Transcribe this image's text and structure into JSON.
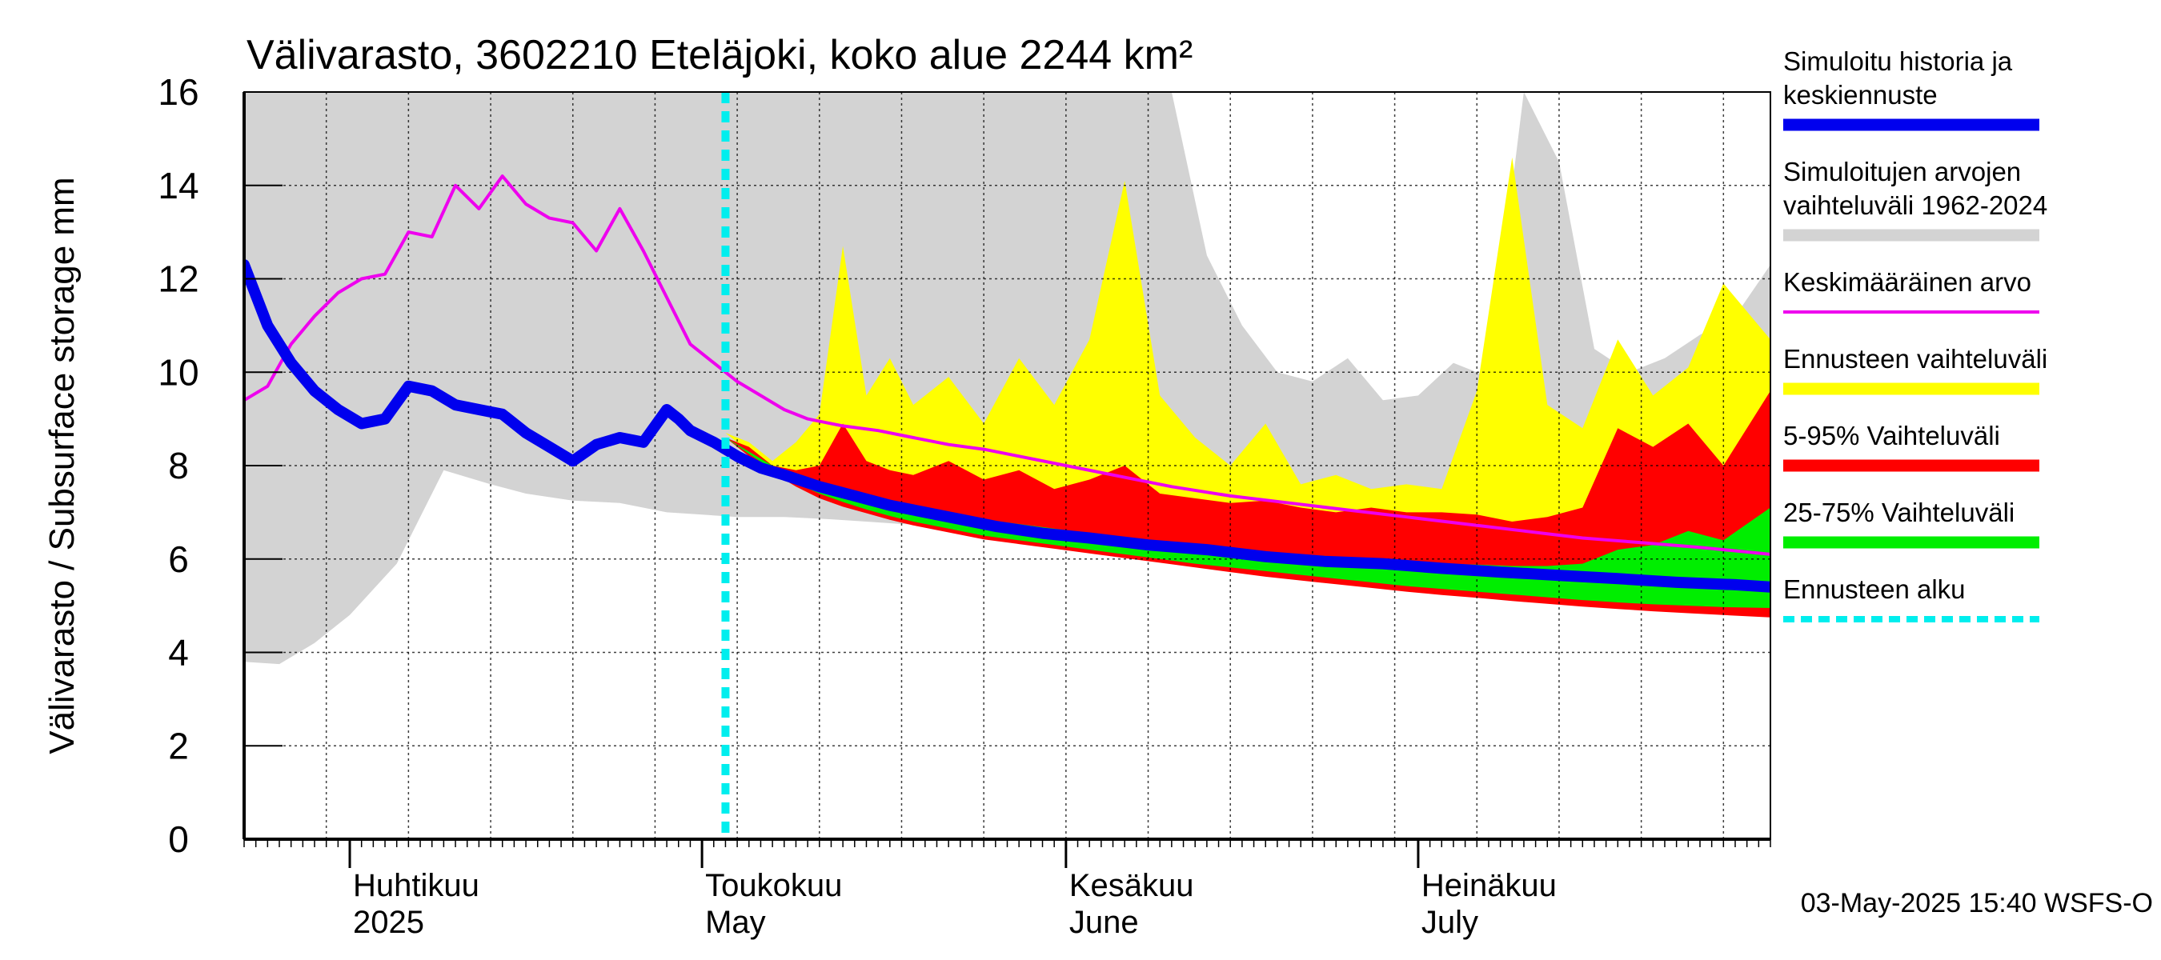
{
  "chart_data": {
    "type": "area",
    "title": "Välivarasto, 3602210 Eteläjoki, koko alue 2244 km²",
    "ylabel": "Välivarasto / Subsurface storage  mm",
    "ylim": [
      0,
      16
    ],
    "yticks": [
      0,
      2,
      4,
      6,
      8,
      10,
      12,
      14,
      16
    ],
    "xlim": [
      "2025-03-23",
      "2025-07-31"
    ],
    "forecast_start": "2025-05-03",
    "month_labels": [
      {
        "date": "2025-04-01",
        "fi": "Huhtikuu",
        "en": "2025"
      },
      {
        "date": "2025-05-01",
        "fi": "Toukokuu",
        "en": "May"
      },
      {
        "date": "2025-06-01",
        "fi": "Kesäkuu",
        "en": "June"
      },
      {
        "date": "2025-07-01",
        "fi": "Heinäkuu",
        "en": "July"
      }
    ],
    "grid": true,
    "legend_position": "right",
    "footer": "03-May-2025 15:40 WSFS-O",
    "colors": {
      "historical_range": "#d3d3d3",
      "forecast_range": "#ffff00",
      "range_5_95": "#ff0000",
      "range_25_75": "#00ee00",
      "simulated": "#0000ee",
      "mean": "#ee00ee",
      "forecast_start": "#00eeee"
    },
    "legend": [
      {
        "key": "simulated",
        "lines": [
          "Simuloitu historia ja",
          "keskiennuste"
        ],
        "color": "#0000ee",
        "style": "thick"
      },
      {
        "key": "historical_range",
        "lines": [
          "Simuloitujen arvojen",
          "vaihteluväli 1962-2024"
        ],
        "color": "#d3d3d3",
        "style": "thick"
      },
      {
        "key": "mean",
        "lines": [
          "Keskimääräinen arvo"
        ],
        "color": "#ee00ee",
        "style": "thin"
      },
      {
        "key": "forecast_range",
        "lines": [
          "Ennusteen vaihteluväli"
        ],
        "color": "#ffff00",
        "style": "thick"
      },
      {
        "key": "range_5_95",
        "lines": [
          "5-95% Vaihteluväli"
        ],
        "color": "#ff0000",
        "style": "thick"
      },
      {
        "key": "range_25_75",
        "lines": [
          "25-75% Vaihteluväli"
        ],
        "color": "#00ee00",
        "style": "thick"
      },
      {
        "key": "forecast_start",
        "lines": [
          "Ennusteen alku"
        ],
        "color": "#00eeee",
        "style": "dashed"
      }
    ],
    "series": {
      "historical_range": {
        "x": [
          "2025-03-23",
          "2025-03-26",
          "2025-03-29",
          "2025-04-01",
          "2025-04-05",
          "2025-04-09",
          "2025-04-13",
          "2025-04-16",
          "2025-04-20",
          "2025-04-24",
          "2025-04-28",
          "2025-05-01",
          "2025-05-04",
          "2025-05-08",
          "2025-05-12",
          "2025-05-15",
          "2025-05-18",
          "2025-05-22",
          "2025-05-25",
          "2025-05-28",
          "2025-06-01",
          "2025-06-04",
          "2025-06-07",
          "2025-06-10",
          "2025-06-13",
          "2025-06-16",
          "2025-06-19",
          "2025-06-22",
          "2025-06-25",
          "2025-06-28",
          "2025-07-01",
          "2025-07-04",
          "2025-07-07",
          "2025-07-10",
          "2025-07-13",
          "2025-07-16",
          "2025-07-19",
          "2025-07-22",
          "2025-07-25",
          "2025-07-28",
          "2025-07-31"
        ],
        "upper": [
          16,
          16,
          16,
          16,
          16,
          16,
          16,
          16,
          16,
          16,
          16,
          16,
          16,
          16,
          16,
          16,
          16,
          16,
          16,
          16,
          16,
          16,
          16,
          16,
          12.5,
          11,
          10,
          9.8,
          10.3,
          9.4,
          9.5,
          10.2,
          9.9,
          16,
          14.5,
          10.5,
          10,
          10.3,
          10.8,
          11.2,
          12.3
        ],
        "lower": [
          3.8,
          3.75,
          4.2,
          4.8,
          5.9,
          7.9,
          7.6,
          7.4,
          7.25,
          7.2,
          7.0,
          6.95,
          6.9,
          6.9,
          6.85,
          6.8,
          6.75,
          6.7,
          6.6,
          6.5,
          6.4,
          6.3,
          6.2,
          6.15,
          6.05,
          5.95,
          5.85,
          5.75,
          5.7,
          5.6,
          5.55,
          5.45,
          5.4,
          5.35,
          5.3,
          5.3,
          5.25,
          5.2,
          5.15,
          5.1,
          5.05
        ]
      },
      "forecast_range": {
        "x": [
          "2025-05-03",
          "2025-05-05",
          "2025-05-07",
          "2025-05-09",
          "2025-05-11",
          "2025-05-13",
          "2025-05-15",
          "2025-05-17",
          "2025-05-19",
          "2025-05-22",
          "2025-05-25",
          "2025-05-28",
          "2025-05-31",
          "2025-06-03",
          "2025-06-06",
          "2025-06-09",
          "2025-06-12",
          "2025-06-15",
          "2025-06-18",
          "2025-06-21",
          "2025-06-24",
          "2025-06-27",
          "2025-06-30",
          "2025-07-03",
          "2025-07-06",
          "2025-07-09",
          "2025-07-12",
          "2025-07-15",
          "2025-07-18",
          "2025-07-21",
          "2025-07-24",
          "2025-07-27",
          "2025-07-31"
        ],
        "upper": [
          8.7,
          8.5,
          8.1,
          8.5,
          9.1,
          12.7,
          9.5,
          10.3,
          9.3,
          9.9,
          8.9,
          10.3,
          9.3,
          10.7,
          14.1,
          9.5,
          8.6,
          8.0,
          8.9,
          7.6,
          7.8,
          7.5,
          7.6,
          7.5,
          9.6,
          14.6,
          9.3,
          8.8,
          10.7,
          9.5,
          10.1,
          11.9,
          10.7
        ],
        "lower": [
          8.7,
          8.3,
          7.9,
          7.6,
          7.35,
          7.2,
          7.05,
          6.9,
          6.8,
          6.65,
          6.5,
          6.4,
          6.3,
          6.2,
          6.1,
          6.0,
          5.9,
          5.8,
          5.7,
          5.62,
          5.55,
          5.47,
          5.4,
          5.33,
          5.27,
          5.2,
          5.13,
          5.07,
          5.0,
          4.95,
          4.9,
          4.85,
          4.8
        ]
      },
      "range_5_95": {
        "x": [
          "2025-05-03",
          "2025-05-05",
          "2025-05-07",
          "2025-05-09",
          "2025-05-11",
          "2025-05-13",
          "2025-05-15",
          "2025-05-17",
          "2025-05-19",
          "2025-05-22",
          "2025-05-25",
          "2025-05-28",
          "2025-05-31",
          "2025-06-03",
          "2025-06-06",
          "2025-06-09",
          "2025-06-12",
          "2025-06-15",
          "2025-06-18",
          "2025-06-21",
          "2025-06-24",
          "2025-06-27",
          "2025-06-30",
          "2025-07-03",
          "2025-07-06",
          "2025-07-09",
          "2025-07-12",
          "2025-07-15",
          "2025-07-18",
          "2025-07-21",
          "2025-07-24",
          "2025-07-27",
          "2025-07-31"
        ],
        "upper": [
          8.6,
          8.4,
          8.0,
          7.9,
          8.0,
          8.9,
          8.1,
          7.9,
          7.8,
          8.1,
          7.7,
          7.9,
          7.5,
          7.7,
          8.0,
          7.4,
          7.3,
          7.2,
          7.25,
          7.1,
          7.0,
          7.1,
          7.0,
          7.0,
          6.95,
          6.8,
          6.9,
          7.1,
          8.8,
          8.4,
          8.9,
          8.0,
          9.6
        ],
        "lower": [
          8.6,
          8.2,
          7.85,
          7.55,
          7.3,
          7.12,
          6.98,
          6.84,
          6.72,
          6.57,
          6.42,
          6.32,
          6.22,
          6.12,
          6.02,
          5.92,
          5.82,
          5.72,
          5.62,
          5.54,
          5.46,
          5.38,
          5.3,
          5.23,
          5.17,
          5.1,
          5.04,
          4.98,
          4.93,
          4.88,
          4.84,
          4.8,
          4.75
        ]
      },
      "range_25_75": {
        "x": [
          "2025-05-03",
          "2025-05-05",
          "2025-05-07",
          "2025-05-09",
          "2025-05-11",
          "2025-05-13",
          "2025-05-15",
          "2025-05-17",
          "2025-05-19",
          "2025-05-22",
          "2025-05-25",
          "2025-05-28",
          "2025-05-31",
          "2025-06-03",
          "2025-06-06",
          "2025-06-09",
          "2025-06-12",
          "2025-06-15",
          "2025-06-18",
          "2025-06-21",
          "2025-06-24",
          "2025-06-27",
          "2025-06-30",
          "2025-07-03",
          "2025-07-06",
          "2025-07-09",
          "2025-07-12",
          "2025-07-15",
          "2025-07-18",
          "2025-07-21",
          "2025-07-24",
          "2025-07-27",
          "2025-07-31"
        ],
        "upper": [
          8.6,
          8.3,
          8.0,
          7.75,
          7.6,
          7.5,
          7.35,
          7.25,
          7.12,
          6.98,
          6.85,
          6.75,
          6.65,
          6.55,
          6.45,
          6.35,
          6.28,
          6.22,
          6.15,
          6.1,
          6.05,
          6.0,
          5.95,
          5.9,
          5.88,
          5.85,
          5.85,
          5.9,
          6.2,
          6.3,
          6.6,
          6.4,
          7.1
        ],
        "lower": [
          8.6,
          8.25,
          7.92,
          7.62,
          7.4,
          7.22,
          7.06,
          6.92,
          6.8,
          6.65,
          6.5,
          6.4,
          6.3,
          6.2,
          6.1,
          6.0,
          5.9,
          5.82,
          5.74,
          5.66,
          5.58,
          5.5,
          5.42,
          5.36,
          5.3,
          5.24,
          5.18,
          5.12,
          5.07,
          5.03,
          5.0,
          4.97,
          4.95
        ]
      },
      "mean": {
        "x": [
          "2025-03-23",
          "2025-03-25",
          "2025-03-27",
          "2025-03-29",
          "2025-03-31",
          "2025-04-02",
          "2025-04-04",
          "2025-04-06",
          "2025-04-08",
          "2025-04-10",
          "2025-04-12",
          "2025-04-14",
          "2025-04-16",
          "2025-04-18",
          "2025-04-20",
          "2025-04-22",
          "2025-04-24",
          "2025-04-26",
          "2025-04-28",
          "2025-04-30",
          "2025-05-02",
          "2025-05-04",
          "2025-05-06",
          "2025-05-08",
          "2025-05-10",
          "2025-05-13",
          "2025-05-16",
          "2025-05-19",
          "2025-05-22",
          "2025-05-25",
          "2025-05-28",
          "2025-06-01",
          "2025-06-05",
          "2025-06-10",
          "2025-06-15",
          "2025-06-20",
          "2025-06-25",
          "2025-06-30",
          "2025-07-05",
          "2025-07-10",
          "2025-07-15",
          "2025-07-20",
          "2025-07-25",
          "2025-07-31"
        ],
        "values": [
          9.4,
          9.7,
          10.6,
          11.2,
          11.7,
          12.0,
          12.1,
          13.0,
          12.9,
          14.0,
          13.5,
          14.2,
          13.6,
          13.3,
          13.2,
          12.6,
          13.5,
          12.6,
          11.6,
          10.6,
          10.2,
          9.8,
          9.5,
          9.2,
          9.0,
          8.85,
          8.75,
          8.6,
          8.45,
          8.35,
          8.2,
          8.0,
          7.8,
          7.55,
          7.35,
          7.2,
          7.05,
          6.9,
          6.75,
          6.6,
          6.45,
          6.35,
          6.25,
          6.1
        ]
      },
      "simulated": {
        "x": [
          "2025-03-23",
          "2025-03-25",
          "2025-03-27",
          "2025-03-29",
          "2025-03-31",
          "2025-04-02",
          "2025-04-04",
          "2025-04-06",
          "2025-04-08",
          "2025-04-10",
          "2025-04-12",
          "2025-04-14",
          "2025-04-16",
          "2025-04-18",
          "2025-04-20",
          "2025-04-22",
          "2025-04-24",
          "2025-04-26",
          "2025-04-28",
          "2025-04-29",
          "2025-04-30",
          "2025-05-02",
          "2025-05-04",
          "2025-05-06",
          "2025-05-08",
          "2025-05-11",
          "2025-05-14",
          "2025-05-17",
          "2025-05-20",
          "2025-05-23",
          "2025-05-26",
          "2025-05-30",
          "2025-06-03",
          "2025-06-08",
          "2025-06-13",
          "2025-06-18",
          "2025-06-23",
          "2025-06-28",
          "2025-07-03",
          "2025-07-08",
          "2025-07-13",
          "2025-07-18",
          "2025-07-23",
          "2025-07-28",
          "2025-07-31"
        ],
        "values": [
          12.3,
          11.0,
          10.2,
          9.6,
          9.2,
          8.9,
          9.0,
          9.7,
          9.6,
          9.3,
          9.2,
          9.1,
          8.7,
          8.4,
          8.1,
          8.45,
          8.6,
          8.5,
          9.2,
          9.0,
          8.75,
          8.5,
          8.2,
          7.95,
          7.8,
          7.55,
          7.35,
          7.15,
          7.0,
          6.85,
          6.7,
          6.55,
          6.45,
          6.3,
          6.2,
          6.05,
          5.95,
          5.9,
          5.8,
          5.72,
          5.65,
          5.58,
          5.5,
          5.45,
          5.4
        ]
      }
    }
  }
}
